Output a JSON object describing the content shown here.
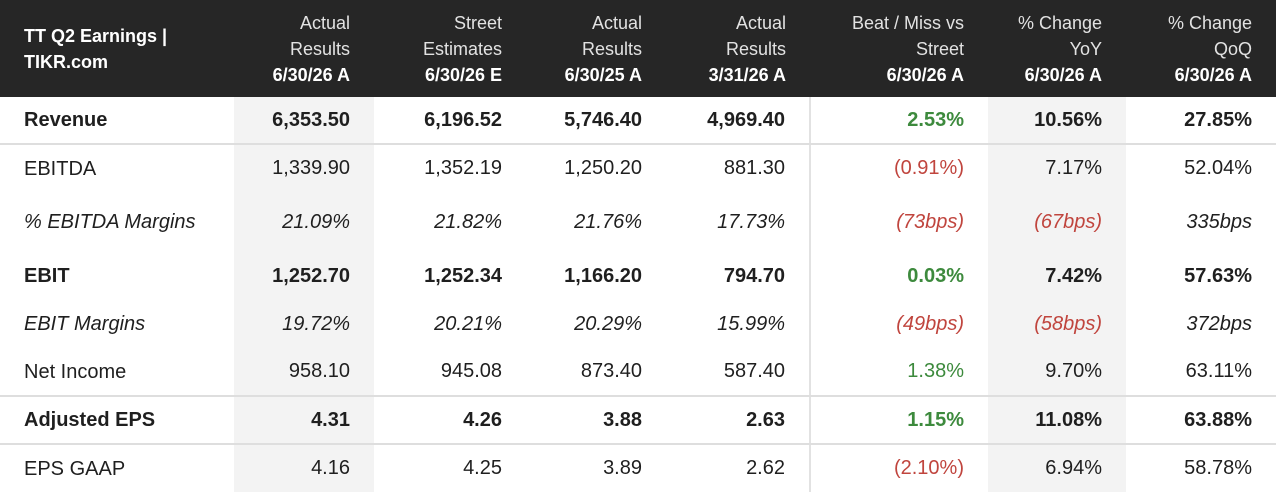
{
  "header": {
    "title_line1": "TT Q2 Earnings |",
    "title_line2": "TIKR.com",
    "columns": [
      {
        "line1": "Actual",
        "line2": "Results",
        "date": "6/30/26 A"
      },
      {
        "line1": "Street",
        "line2": "Estimates",
        "date": "6/30/26 E"
      },
      {
        "line1": "Actual",
        "line2": "Results",
        "date": "6/30/25 A"
      },
      {
        "line1": "Actual",
        "line2": "Results",
        "date": "3/31/26 A"
      },
      {
        "line1": "Beat / Miss vs",
        "line2": "Street",
        "date": "6/30/26 A"
      },
      {
        "line1": "% Change",
        "line2": "YoY",
        "date": "6/30/26 A"
      },
      {
        "line1": "% Change",
        "line2": "QoQ",
        "date": "6/30/26 A"
      }
    ]
  },
  "rows": [
    {
      "label": "Revenue",
      "values": [
        "6,353.50",
        "6,196.52",
        "5,746.40",
        "4,969.40",
        "2.53%",
        "10.56%",
        "27.85%"
      ]
    },
    {
      "label": "EBITDA",
      "values": [
        "1,339.90",
        "1,352.19",
        "1,250.20",
        "881.30",
        "(0.91%)",
        "7.17%",
        "52.04%"
      ]
    },
    {
      "label": "% EBITDA Margins",
      "values": [
        "21.09%",
        "21.82%",
        "21.76%",
        "17.73%",
        "(73bps)",
        "(67bps)",
        "335bps"
      ]
    },
    {
      "label": "EBIT",
      "values": [
        "1,252.70",
        "1,252.34",
        "1,166.20",
        "794.70",
        "0.03%",
        "7.42%",
        "57.63%"
      ]
    },
    {
      "label": "EBIT Margins",
      "values": [
        "19.72%",
        "20.21%",
        "20.29%",
        "15.99%",
        "(49bps)",
        "(58bps)",
        "372bps"
      ]
    },
    {
      "label": "Net Income",
      "values": [
        "958.10",
        "945.08",
        "873.40",
        "587.40",
        "1.38%",
        "9.70%",
        "63.11%"
      ]
    },
    {
      "label": "Adjusted EPS",
      "values": [
        "4.31",
        "4.26",
        "3.88",
        "2.63",
        "1.15%",
        "11.08%",
        "63.88%"
      ]
    },
    {
      "label": "EPS GAAP",
      "values": [
        "4.16",
        "4.25",
        "3.89",
        "2.62",
        "(2.10%)",
        "6.94%",
        "58.78%"
      ]
    }
  ],
  "colors": {
    "header_bg": "#262626",
    "positive": "#3d8a3d",
    "negative": "#c0453e",
    "shade": "#f3f3f3"
  }
}
